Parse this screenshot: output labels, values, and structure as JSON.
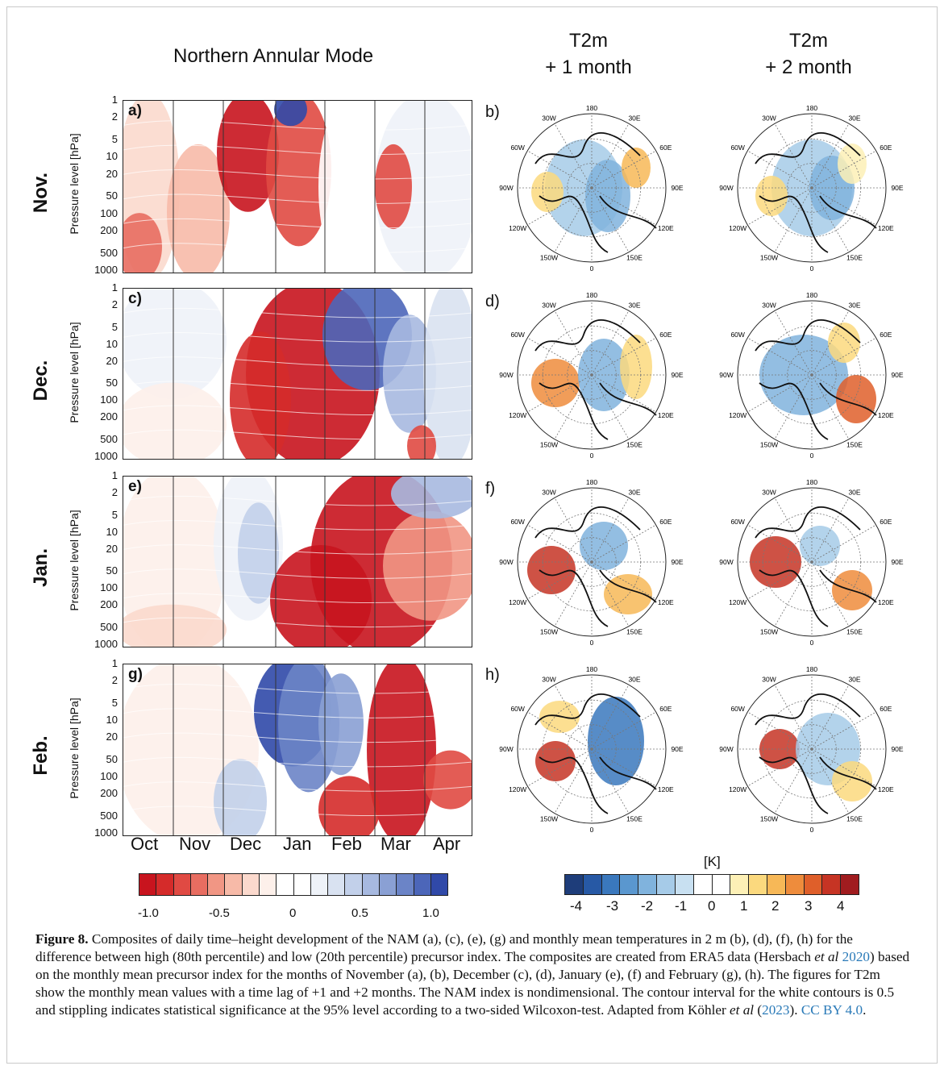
{
  "titles": {
    "nam": "Northern Annular Mode",
    "t2m_1": "T2m\n+ 1 month",
    "t2m_1_line1": "T2m",
    "t2m_1_line2": "+ 1 month",
    "t2m_2_line1": "T2m",
    "t2m_2_line2": "+ 2 month"
  },
  "rows": [
    {
      "label": "Nov.",
      "nam_letter": "a)",
      "map_letter": "b)"
    },
    {
      "label": "Dec.",
      "nam_letter": "c)",
      "map_letter": "d)"
    },
    {
      "label": "Jan.",
      "nam_letter": "e)",
      "map_letter": "f)"
    },
    {
      "label": "Feb.",
      "nam_letter": "g)",
      "map_letter": "h)"
    }
  ],
  "y_axis_label": "Pressure level [hPa]",
  "pressure_ticks": [
    "1",
    "2",
    "5",
    "10",
    "20",
    "50",
    "100",
    "200",
    "500",
    "1000"
  ],
  "months": [
    "Oct",
    "Nov",
    "Dec",
    "Jan",
    "Feb",
    "Mar",
    "Apr"
  ],
  "polar_labels": {
    "lon_top": "180",
    "lon_bottom": "0",
    "left": [
      "150W",
      "120W",
      "90W",
      "60W",
      "30W"
    ],
    "right": [
      "150E",
      "120E",
      "90E",
      "60E",
      "30E"
    ]
  },
  "colorbar_nam": {
    "labels": [
      "-1.0",
      "-0.5",
      "0",
      "0.5",
      "1.0"
    ],
    "colors": [
      "#c8141e",
      "#d52b2a",
      "#e04a43",
      "#e86d61",
      "#f19684",
      "#f7baa8",
      "#fbd9cd",
      "#fdf0ea",
      "#ffffff",
      "#ffffff",
      "#eef2f8",
      "#d9e2f1",
      "#c2d0ea",
      "#a7b9e0",
      "#8aa0d4",
      "#6b84c7",
      "#4c66b9",
      "#3049a8"
    ]
  },
  "colorbar_t2m": {
    "unit": "[K]",
    "labels": [
      "-4",
      "-3",
      "-2",
      "-1",
      "0",
      "1",
      "2",
      "3",
      "4"
    ],
    "colors": [
      "#1e3d7a",
      "#2759a5",
      "#3a78bd",
      "#5a97cf",
      "#80b3dd",
      "#a6cbe8",
      "#c8e0f1",
      "#ffffff",
      "#ffffff",
      "#fdf0b6",
      "#fbd97e",
      "#f7b857",
      "#ee8c3c",
      "#df5f2a",
      "#c63424",
      "#a01c1f"
    ]
  },
  "caption": {
    "figure": "Figure 8.",
    "text_1": " Composites of daily time–height development of the NAM (a), (c), (e), (g) and monthly mean temperatures in 2 m (b), (d), (f), (h) for the difference between high (80th percentile) and low (20th percentile) precursor index. The composites are created from ERA5 data (Hersbach ",
    "etal_1": "et al",
    "year_1": "2020",
    "text_2": ") based on the monthly mean precursor index for the months of November (a), (b), December (c), (d), January (e), (f) and February (g), (h). The figures for T2m show the monthly mean values with a time lag of +1 and +2 months. The NAM index is nondimensional. The contour interval for the white contours is 0.5 and stippling indicates statistical significance at the 95% level according to a two-sided Wilcoxon-test. Adapted from Köhler ",
    "etal_2": "et al",
    "text_3": " (",
    "year_2": "2023",
    "text_4": "). ",
    "license": "CC BY 4.0",
    "text_5": "."
  }
}
